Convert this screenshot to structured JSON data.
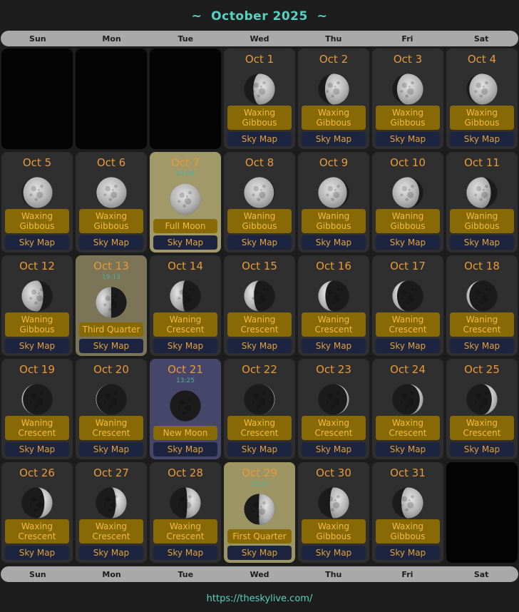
{
  "header": {
    "title": "~  October 2025  ~"
  },
  "weekdays": [
    "Sun",
    "Mon",
    "Tue",
    "Wed",
    "Thu",
    "Fri",
    "Sat"
  ],
  "skymap_label": "Sky Map",
  "footer": {
    "url": "https://theskylive.com/"
  },
  "colors": {
    "page_bg": "#1d1d1d",
    "accent_teal": "#57d2c2",
    "daybar_bg": "#a9a9a9",
    "cell_bg": "#2f2f2f",
    "empty_cell_bg": "#040404",
    "date_orange": "#e69a3c",
    "time_teal": "#4fae9b",
    "phase_badge_bg": "#876905",
    "phase_badge_text": "#f2bb42",
    "skymap_bg": "#1d2440",
    "skymap_text": "#e0a33c",
    "highlight": {
      "full-moon": "#a19968",
      "third-quarter": "#7b7456",
      "new-moon": "#46466b",
      "first-quarter": "#9d9464"
    }
  },
  "cells": [
    {
      "empty": true
    },
    {
      "empty": true
    },
    {
      "empty": true
    },
    {
      "date": "Oct 1",
      "phase": "Waxing Gibbous",
      "illum": 0.7,
      "waxing": true
    },
    {
      "date": "Oct 2",
      "phase": "Waxing Gibbous",
      "illum": 0.78,
      "waxing": true
    },
    {
      "date": "Oct 3",
      "phase": "Waxing Gibbous",
      "illum": 0.85,
      "waxing": true
    },
    {
      "date": "Oct 4",
      "phase": "Waxing Gibbous",
      "illum": 0.91,
      "waxing": true
    },
    {
      "date": "Oct 5",
      "phase": "Waxing Gibbous",
      "illum": 0.95,
      "waxing": true
    },
    {
      "date": "Oct 6",
      "phase": "Waxing Gibbous",
      "illum": 0.98,
      "waxing": true
    },
    {
      "date": "Oct 7",
      "phase": "Full Moon",
      "illum": 1.0,
      "waxing": true,
      "time": "04:48",
      "highlight": "full-moon"
    },
    {
      "date": "Oct 8",
      "phase": "Waning Gibbous",
      "illum": 0.97,
      "waxing": false
    },
    {
      "date": "Oct 9",
      "phase": "Waning Gibbous",
      "illum": 0.93,
      "waxing": false
    },
    {
      "date": "Oct 10",
      "phase": "Waning Gibbous",
      "illum": 0.87,
      "waxing": false
    },
    {
      "date": "Oct 11",
      "phase": "Waning Gibbous",
      "illum": 0.79,
      "waxing": false
    },
    {
      "date": "Oct 12",
      "phase": "Waning Gibbous",
      "illum": 0.7,
      "waxing": false
    },
    {
      "date": "Oct 13",
      "phase": "Third Quarter",
      "illum": 0.5,
      "waxing": false,
      "time": "19:13",
      "highlight": "third-quarter"
    },
    {
      "date": "Oct 14",
      "phase": "Waning Crescent",
      "illum": 0.41,
      "waxing": false
    },
    {
      "date": "Oct 15",
      "phase": "Waning Crescent",
      "illum": 0.32,
      "waxing": false
    },
    {
      "date": "Oct 16",
      "phase": "Waning Crescent",
      "illum": 0.23,
      "waxing": false
    },
    {
      "date": "Oct 17",
      "phase": "Waning Crescent",
      "illum": 0.15,
      "waxing": false
    },
    {
      "date": "Oct 18",
      "phase": "Waning Crescent",
      "illum": 0.09,
      "waxing": false
    },
    {
      "date": "Oct 19",
      "phase": "Waning Crescent",
      "illum": 0.04,
      "waxing": false
    },
    {
      "date": "Oct 20",
      "phase": "Waning Crescent",
      "illum": 0.02,
      "waxing": false
    },
    {
      "date": "Oct 21",
      "phase": "New Moon",
      "illum": 0.0,
      "waxing": true,
      "time": "13:25",
      "highlight": "new-moon"
    },
    {
      "date": "Oct 22",
      "phase": "Waxing Crescent",
      "illum": 0.02,
      "waxing": true
    },
    {
      "date": "Oct 23",
      "phase": "Waxing Crescent",
      "illum": 0.06,
      "waxing": true
    },
    {
      "date": "Oct 24",
      "phase": "Waxing Crescent",
      "illum": 0.11,
      "waxing": true
    },
    {
      "date": "Oct 25",
      "phase": "Waxing Crescent",
      "illum": 0.18,
      "waxing": true
    },
    {
      "date": "Oct 26",
      "phase": "Waxing Crescent",
      "illum": 0.26,
      "waxing": true
    },
    {
      "date": "Oct 27",
      "phase": "Waxing Crescent",
      "illum": 0.35,
      "waxing": true
    },
    {
      "date": "Oct 28",
      "phase": "Waxing Crescent",
      "illum": 0.44,
      "waxing": true
    },
    {
      "date": "Oct 29",
      "phase": "First Quarter",
      "illum": 0.52,
      "waxing": true,
      "time": "16:21",
      "highlight": "first-quarter"
    },
    {
      "date": "Oct 30",
      "phase": "Waxing Gibbous",
      "illum": 0.62,
      "waxing": true
    },
    {
      "date": "Oct 31",
      "phase": "Waxing Gibbous",
      "illum": 0.71,
      "waxing": true
    },
    {
      "empty": true
    }
  ]
}
